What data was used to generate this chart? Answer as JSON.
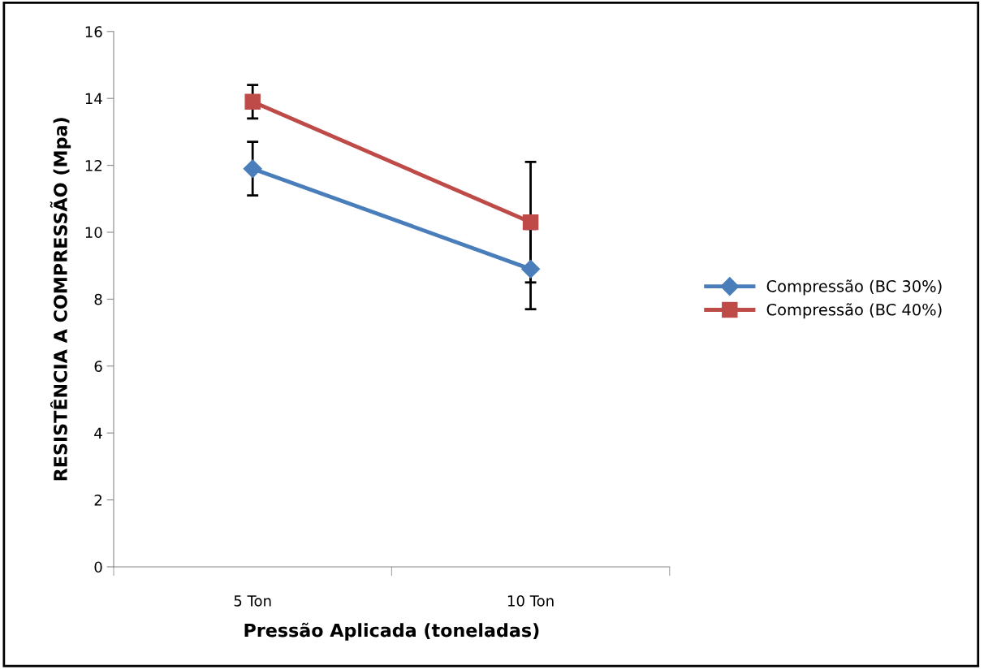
{
  "chart_data": {
    "type": "line",
    "xlabel": "Pressão Aplicada (toneladas)",
    "ylabel": "RESISTÊNCIA A COMPRESSÃO (Mpa)",
    "categories": [
      "5 Ton",
      "10 Ton"
    ],
    "series": [
      {
        "name": "Compressão (BC 30%)",
        "color": "#4a7ebb",
        "values": [
          11.9,
          8.9
        ],
        "errors": [
          0.8,
          1.2
        ],
        "marker": "diamond"
      },
      {
        "name": "Compressão (BC 40%)",
        "color": "#be4b48",
        "values": [
          13.9,
          10.3
        ],
        "errors": [
          0.5,
          1.8
        ],
        "marker": "square"
      }
    ],
    "ylim": [
      0,
      16
    ],
    "yticks": [
      0,
      2,
      4,
      6,
      8,
      10,
      12,
      14,
      16
    ],
    "grid": false,
    "legend": "right",
    "line_style": "solid"
  }
}
